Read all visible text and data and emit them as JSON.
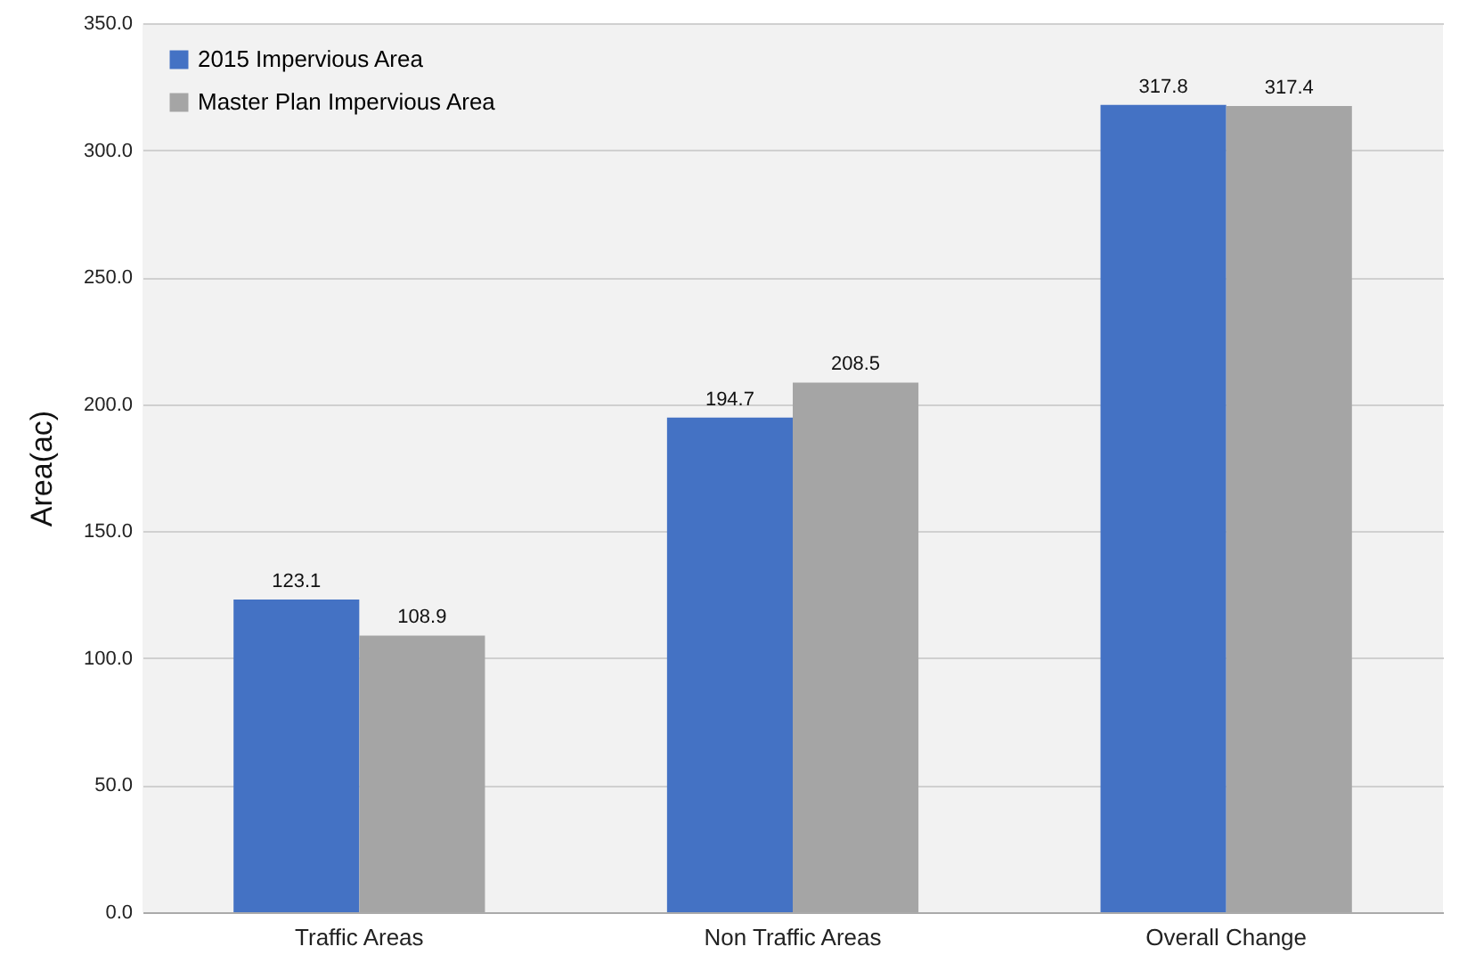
{
  "chart_data": {
    "type": "bar",
    "ylabel": "Area(ac)",
    "categories": [
      "Traffic Areas",
      "Non Traffic Areas",
      "Overall Change"
    ],
    "series": [
      {
        "name": "2015 Impervious Area",
        "color": "#4472c4",
        "values": [
          123.1,
          194.7,
          317.8
        ]
      },
      {
        "name": "Master Plan Impervious Area",
        "color": "#a5a5a5",
        "values": [
          108.9,
          208.5,
          317.4
        ]
      }
    ],
    "ylim": [
      0,
      350
    ],
    "yticks": [
      {
        "value": 0,
        "label": "0.0"
      },
      {
        "value": 50,
        "label": "50.0"
      },
      {
        "value": 100,
        "label": "100.0"
      },
      {
        "value": 150,
        "label": "150.0"
      },
      {
        "value": 200,
        "label": "200.0"
      },
      {
        "value": 250,
        "label": "250.0"
      },
      {
        "value": 300,
        "label": "300.0"
      },
      {
        "value": 350,
        "label": "350.0"
      }
    ],
    "grid": "y",
    "legend": "top left",
    "data_labels": true
  }
}
